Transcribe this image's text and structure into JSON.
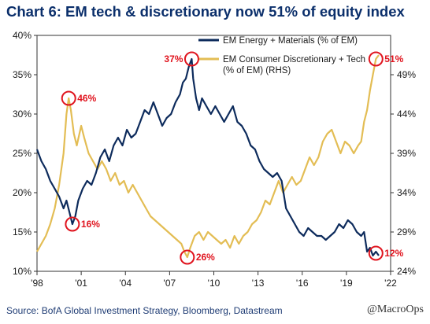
{
  "chart_data": {
    "type": "line",
    "title": "Chart 6: EM tech & discretionary now 51% of equity index",
    "source": "Source: BofA Global Investment Strategy, Bloomberg, Datastream",
    "watermark": "@MacroOps",
    "x_ticks": [
      "'98",
      "'01",
      "'04",
      "'07",
      "'10",
      "'13",
      "'16",
      "'19",
      "'22"
    ],
    "x_range": [
      1998,
      2022
    ],
    "y_left": {
      "ticks": [
        "10%",
        "15%",
        "20%",
        "25%",
        "30%",
        "35%",
        "40%"
      ],
      "range": [
        10,
        40
      ]
    },
    "y_right": {
      "ticks": [
        "24%",
        "29%",
        "34%",
        "39%",
        "44%",
        "49%"
      ],
      "range": [
        24,
        54
      ]
    },
    "grid": false,
    "legend_position": "top-right",
    "series": [
      {
        "name": "EM Energy + Materials (% of EM)",
        "axis": "left",
        "color": "#0d2b5c",
        "points": [
          [
            1998.0,
            25.5
          ],
          [
            1998.3,
            24.0
          ],
          [
            1998.6,
            23.0
          ],
          [
            1998.9,
            21.5
          ],
          [
            1999.2,
            20.5
          ],
          [
            1999.5,
            19.5
          ],
          [
            1999.8,
            18.0
          ],
          [
            2000.0,
            19.0
          ],
          [
            2000.2,
            17.5
          ],
          [
            2000.4,
            16.0
          ],
          [
            2000.6,
            17.0
          ],
          [
            2000.8,
            19.0
          ],
          [
            2001.1,
            20.5
          ],
          [
            2001.4,
            21.5
          ],
          [
            2001.7,
            21.0
          ],
          [
            2002.0,
            22.5
          ],
          [
            2002.3,
            24.5
          ],
          [
            2002.6,
            25.5
          ],
          [
            2002.9,
            24.0
          ],
          [
            2003.2,
            26.0
          ],
          [
            2003.5,
            27.0
          ],
          [
            2003.8,
            26.0
          ],
          [
            2004.1,
            28.0
          ],
          [
            2004.4,
            27.0
          ],
          [
            2004.7,
            27.5
          ],
          [
            2005.0,
            29.0
          ],
          [
            2005.3,
            30.5
          ],
          [
            2005.6,
            30.0
          ],
          [
            2005.9,
            31.5
          ],
          [
            2006.2,
            30.0
          ],
          [
            2006.5,
            28.5
          ],
          [
            2006.8,
            29.5
          ],
          [
            2007.1,
            30.0
          ],
          [
            2007.4,
            31.5
          ],
          [
            2007.7,
            32.5
          ],
          [
            2007.9,
            34.0
          ],
          [
            2008.1,
            34.5
          ],
          [
            2008.3,
            36.0
          ],
          [
            2008.5,
            37.0
          ],
          [
            2008.6,
            34.5
          ],
          [
            2008.8,
            32.0
          ],
          [
            2009.0,
            30.5
          ],
          [
            2009.2,
            32.0
          ],
          [
            2009.5,
            31.0
          ],
          [
            2009.8,
            30.0
          ],
          [
            2010.1,
            31.0
          ],
          [
            2010.4,
            30.0
          ],
          [
            2010.7,
            29.0
          ],
          [
            2011.0,
            30.0
          ],
          [
            2011.3,
            31.0
          ],
          [
            2011.6,
            29.0
          ],
          [
            2011.9,
            28.5
          ],
          [
            2012.2,
            27.5
          ],
          [
            2012.5,
            26.0
          ],
          [
            2012.8,
            25.5
          ],
          [
            2013.1,
            24.0
          ],
          [
            2013.4,
            23.0
          ],
          [
            2013.7,
            22.5
          ],
          [
            2014.0,
            22.0
          ],
          [
            2014.3,
            22.5
          ],
          [
            2014.6,
            21.5
          ],
          [
            2014.9,
            18.0
          ],
          [
            2015.2,
            17.0
          ],
          [
            2015.5,
            16.0
          ],
          [
            2015.8,
            15.0
          ],
          [
            2016.1,
            14.5
          ],
          [
            2016.4,
            15.5
          ],
          [
            2016.7,
            15.0
          ],
          [
            2017.0,
            14.5
          ],
          [
            2017.3,
            14.5
          ],
          [
            2017.6,
            14.0
          ],
          [
            2017.9,
            14.5
          ],
          [
            2018.2,
            15.0
          ],
          [
            2018.5,
            16.0
          ],
          [
            2018.8,
            15.5
          ],
          [
            2019.1,
            16.5
          ],
          [
            2019.4,
            16.0
          ],
          [
            2019.7,
            15.0
          ],
          [
            2020.0,
            14.5
          ],
          [
            2020.2,
            15.0
          ],
          [
            2020.4,
            12.5
          ],
          [
            2020.6,
            13.0
          ],
          [
            2020.8,
            12.0
          ],
          [
            2021.0,
            12.5
          ],
          [
            2021.2,
            12.0
          ]
        ]
      },
      {
        "name": "EM Consumer Discretionary + Tech (% of EM) (RHS)",
        "axis": "right",
        "color": "#e3bd54",
        "points": [
          [
            1998.0,
            26.5
          ],
          [
            1998.3,
            27.5
          ],
          [
            1998.6,
            28.5
          ],
          [
            1998.9,
            30.0
          ],
          [
            1999.2,
            32.0
          ],
          [
            1999.5,
            35.0
          ],
          [
            1999.8,
            39.0
          ],
          [
            2000.0,
            44.0
          ],
          [
            2000.15,
            46.0
          ],
          [
            2000.3,
            44.5
          ],
          [
            2000.5,
            41.5
          ],
          [
            2000.7,
            40.0
          ],
          [
            2001.0,
            42.5
          ],
          [
            2001.2,
            41.0
          ],
          [
            2001.5,
            39.0
          ],
          [
            2001.8,
            38.0
          ],
          [
            2002.1,
            37.0
          ],
          [
            2002.4,
            38.0
          ],
          [
            2002.7,
            37.0
          ],
          [
            2003.0,
            35.5
          ],
          [
            2003.3,
            36.5
          ],
          [
            2003.6,
            35.0
          ],
          [
            2003.9,
            35.5
          ],
          [
            2004.2,
            34.0
          ],
          [
            2004.5,
            35.0
          ],
          [
            2004.8,
            34.0
          ],
          [
            2005.1,
            33.0
          ],
          [
            2005.4,
            32.0
          ],
          [
            2005.7,
            31.0
          ],
          [
            2006.0,
            30.5
          ],
          [
            2006.3,
            30.0
          ],
          [
            2006.6,
            29.5
          ],
          [
            2006.9,
            29.0
          ],
          [
            2007.2,
            28.5
          ],
          [
            2007.5,
            28.0
          ],
          [
            2007.8,
            27.5
          ],
          [
            2008.0,
            26.5
          ],
          [
            2008.2,
            25.8
          ],
          [
            2008.4,
            27.0
          ],
          [
            2008.7,
            28.5
          ],
          [
            2009.0,
            29.0
          ],
          [
            2009.3,
            28.0
          ],
          [
            2009.6,
            29.0
          ],
          [
            2009.9,
            28.5
          ],
          [
            2010.2,
            28.0
          ],
          [
            2010.5,
            27.5
          ],
          [
            2010.8,
            28.0
          ],
          [
            2011.1,
            27.0
          ],
          [
            2011.4,
            28.5
          ],
          [
            2011.7,
            27.5
          ],
          [
            2012.0,
            28.5
          ],
          [
            2012.3,
            29.0
          ],
          [
            2012.6,
            30.0
          ],
          [
            2012.9,
            30.5
          ],
          [
            2013.2,
            31.5
          ],
          [
            2013.5,
            33.0
          ],
          [
            2013.8,
            32.5
          ],
          [
            2014.1,
            34.0
          ],
          [
            2014.4,
            35.5
          ],
          [
            2014.7,
            34.0
          ],
          [
            2015.0,
            35.0
          ],
          [
            2015.3,
            36.0
          ],
          [
            2015.6,
            35.0
          ],
          [
            2015.9,
            35.5
          ],
          [
            2016.2,
            37.0
          ],
          [
            2016.5,
            38.5
          ],
          [
            2016.8,
            37.5
          ],
          [
            2017.1,
            38.5
          ],
          [
            2017.4,
            40.5
          ],
          [
            2017.7,
            41.5
          ],
          [
            2018.0,
            42.0
          ],
          [
            2018.3,
            40.5
          ],
          [
            2018.6,
            39.0
          ],
          [
            2018.9,
            40.5
          ],
          [
            2019.2,
            40.0
          ],
          [
            2019.5,
            39.0
          ],
          [
            2019.8,
            40.0
          ],
          [
            2020.0,
            40.5
          ],
          [
            2020.2,
            43.0
          ],
          [
            2020.4,
            44.5
          ],
          [
            2020.6,
            47.0
          ],
          [
            2020.8,
            49.0
          ],
          [
            2021.0,
            51.0
          ],
          [
            2021.2,
            51.5
          ]
        ]
      }
    ],
    "annotations": [
      {
        "label": "46%",
        "x": 2000.15,
        "y": 46.0,
        "axis": "right",
        "label_side": "right"
      },
      {
        "label": "16%",
        "x": 2000.4,
        "y": 16.0,
        "axis": "left",
        "label_side": "right"
      },
      {
        "label": "37%",
        "x": 2008.5,
        "y": 37.0,
        "axis": "left",
        "label_side": "left"
      },
      {
        "label": "26%",
        "x": 2008.2,
        "y": 25.8,
        "axis": "right",
        "label_side": "right"
      },
      {
        "label": "51%",
        "x": 2021.0,
        "y": 51.0,
        "axis": "right",
        "label_side": "right"
      },
      {
        "label": "12%",
        "x": 2021.0,
        "y": 12.3,
        "axis": "left",
        "label_side": "right"
      }
    ]
  }
}
